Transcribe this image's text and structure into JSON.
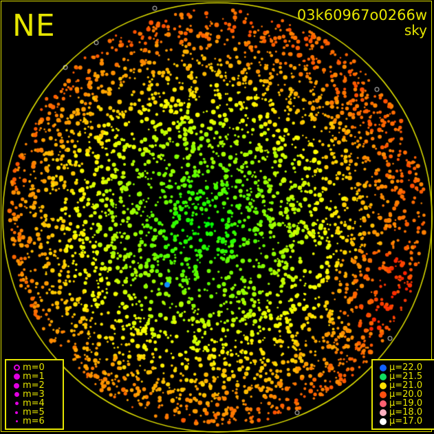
{
  "direction_label": "NE",
  "frame_id": "03k60967o0266w",
  "source": "sky",
  "magnitude_legend": {
    "color": "#e000e0",
    "items": [
      {
        "label": "m=0",
        "hollow": true
      },
      {
        "label": "m=1"
      },
      {
        "label": "m=2"
      },
      {
        "label": "m=3"
      },
      {
        "label": "m=4"
      },
      {
        "label": "m=5"
      },
      {
        "label": "m=6"
      }
    ]
  },
  "brightness_legend": {
    "items": [
      {
        "label": "μ=22.0",
        "color": "#1060ff"
      },
      {
        "label": "μ=21.5",
        "color": "#10e060"
      },
      {
        "label": "μ=21.0",
        "color": "#ffe000"
      },
      {
        "label": "μ=20.0",
        "color": "#ff5010"
      },
      {
        "label": "μ=19.0",
        "color": "#ff6070"
      },
      {
        "label": "μ=18.0",
        "color": "#ffb0c0"
      },
      {
        "label": "μ=17.0",
        "color": "#ffffff"
      }
    ]
  },
  "horizon_color": "#e6e600"
}
